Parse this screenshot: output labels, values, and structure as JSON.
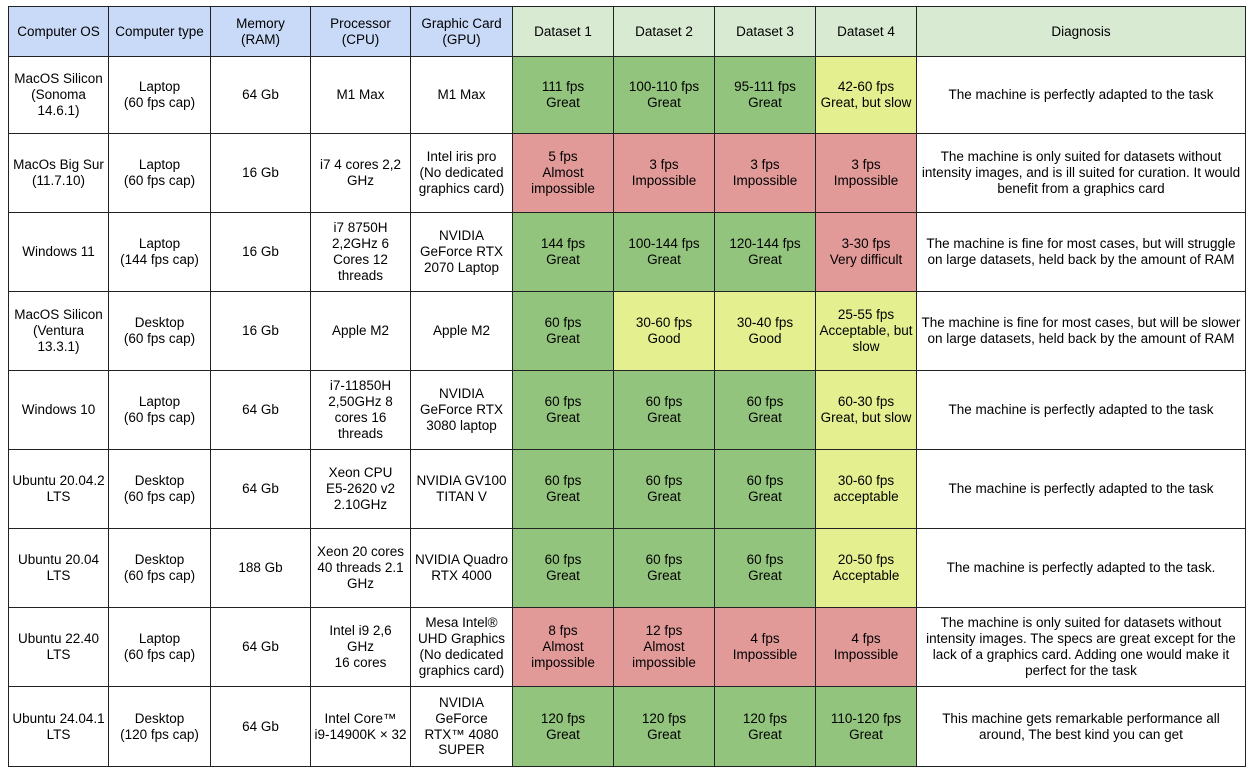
{
  "headers": [
    "Computer OS",
    "Computer type",
    "Memory\n(RAM)",
    "Processor\n(CPU)",
    "Graphic Card\n(GPU)",
    "Dataset 1",
    "Dataset 2",
    "Dataset 3",
    "Dataset 4",
    "Diagnosis"
  ],
  "colors": {
    "spec_header": "#c9daf8",
    "dataset_header": "#d9ead3",
    "great": "#93c47d",
    "good": "#e4ef90",
    "bad": "#e29a99"
  },
  "rows": [
    {
      "os": "MacOS Silicon\n(Sonoma\n14.6.1)",
      "type": "Laptop\n(60 fps cap)",
      "ram": "64 Gb",
      "cpu": "M1 Max",
      "gpu": "M1 Max",
      "d1": "111 fps\nGreat",
      "d1_level": "great",
      "d2": "100-110 fps\nGreat",
      "d2_level": "great",
      "d3": "95-111 fps\nGreat",
      "d3_level": "great",
      "d4": "42-60 fps\nGreat, but slow",
      "d4_level": "good",
      "diagnosis": "The machine is perfectly adapted to the task"
    },
    {
      "os": "MacOs Big Sur\n(11.7.10)",
      "type": "Laptop\n(60 fps cap)",
      "ram": "16 Gb",
      "cpu": "i7 4 cores 2,2\nGHz",
      "gpu": "Intel iris pro\n(No dedicated\ngraphics card)",
      "d1": "5 fps\nAlmost\nimpossible",
      "d1_level": "bad",
      "d2": "3 fps\nImpossible",
      "d2_level": "bad",
      "d3": "3 fps\nImpossible",
      "d3_level": "bad",
      "d4": "3 fps\nImpossible",
      "d4_level": "bad",
      "diagnosis": "The machine is only suited for datasets without\nintensity images, and is ill suited for curation. It would\nbenefit from a graphics card"
    },
    {
      "os": "Windows 11",
      "type": "Laptop\n(144 fps cap)",
      "ram": "16 Gb",
      "cpu": "i7 8750H\n2,2GHz 6\nCores 12\nthreads",
      "gpu": "NVIDIA\nGeForce RTX\n2070 Laptop",
      "d1": "144 fps\nGreat",
      "d1_level": "great",
      "d2": "100-144 fps\nGreat",
      "d2_level": "great",
      "d3": "120-144 fps\nGreat",
      "d3_level": "great",
      "d4": "3-30 fps\nVery difficult",
      "d4_level": "bad",
      "diagnosis": "The machine is fine for most cases, but will struggle\non large datasets, held back by the amount of RAM"
    },
    {
      "os": "MacOS Silicon\n(Ventura\n13.3.1)",
      "type": "Desktop\n(60 fps cap)",
      "ram": "16 Gb",
      "cpu": "Apple M2",
      "gpu": "Apple M2",
      "d1": "60 fps\nGreat",
      "d1_level": "great",
      "d2": "30-60 fps\nGood",
      "d2_level": "good",
      "d3": "30-40 fps\nGood",
      "d3_level": "good",
      "d4": "25-55 fps\nAcceptable, but\nslow",
      "d4_level": "good",
      "diagnosis": "The machine is fine for most cases, but will be slower\non large datasets, held back by the amount of RAM"
    },
    {
      "os": "Windows 10",
      "type": "Laptop\n(60 fps cap)",
      "ram": "64 Gb",
      "cpu": "i7-11850H\n2,50GHz 8\ncores 16\nthreads",
      "gpu": "NVIDIA\nGeForce RTX\n3080 laptop",
      "d1": "60 fps\nGreat",
      "d1_level": "great",
      "d2": "60 fps\nGreat",
      "d2_level": "great",
      "d3": "60 fps\nGreat",
      "d3_level": "great",
      "d4": "60-30 fps\nGreat, but slow",
      "d4_level": "good",
      "diagnosis": "The machine is perfectly adapted to the task"
    },
    {
      "os": "Ubuntu 20.04.2\nLTS",
      "type": "Desktop\n(60 fps cap)",
      "ram": "64 Gb",
      "cpu": "Xeon CPU\nE5-2620 v2\n2.10GHz",
      "gpu": "NVIDIA GV100\nTITAN V",
      "d1": "60 fps\nGreat",
      "d1_level": "great",
      "d2": "60 fps\nGreat",
      "d2_level": "great",
      "d3": "60 fps\nGreat",
      "d3_level": "great",
      "d4": "30-60 fps\nacceptable",
      "d4_level": "good",
      "diagnosis": "The machine is perfectly adapted to the task"
    },
    {
      "os": "Ubuntu 20.04\nLTS",
      "type": "Desktop\n(60 fps cap)",
      "ram": "188 Gb",
      "cpu": "Xeon 20 cores\n40 threads 2.1\nGHz",
      "gpu": "NVIDIA Quadro\nRTX 4000",
      "d1": "60 fps\nGreat",
      "d1_level": "great",
      "d2": "60 fps\nGreat",
      "d2_level": "great",
      "d3": "60 fps\nGreat",
      "d3_level": "great",
      "d4": "20-50 fps\nAcceptable",
      "d4_level": "good",
      "diagnosis": "The machine is perfectly adapted to the task."
    },
    {
      "os": "Ubuntu 22.40\nLTS",
      "type": "Laptop\n(60 fps cap)",
      "ram": "64 Gb",
      "cpu": "Intel i9 2,6 GHz\n16 cores",
      "gpu": "Mesa Intel®\nUHD Graphics\n(No dedicated\ngraphics card)",
      "d1": "8 fps\nAlmost\nimpossible",
      "d1_level": "bad",
      "d2": "12 fps\nAlmost\nimpossible",
      "d2_level": "bad",
      "d3": "4 fps\nImpossible",
      "d3_level": "bad",
      "d4": "4 fps\nImpossible",
      "d4_level": "bad",
      "diagnosis": "The machine is only suited for datasets without\nintensity images. The specs are great except for the\nlack of a graphics card. Adding one would make it\nperfect for the task"
    },
    {
      "os": "Ubuntu 24.04.1\nLTS",
      "type": "Desktop\n(120 fps cap)",
      "ram": "64 Gb",
      "cpu": "Intel Core™\ni9-14900K × 32",
      "gpu": "NVIDIA\nGeForce\nRTX™ 4080\nSUPER",
      "d1": "120 fps\nGreat",
      "d1_level": "great",
      "d2": "120 fps\nGreat",
      "d2_level": "great",
      "d3": "120 fps\nGreat",
      "d3_level": "great",
      "d4": "110-120 fps\nGreat",
      "d4_level": "great",
      "diagnosis": "This machine gets remarkable performance all\naround, The best kind you can get"
    }
  ]
}
